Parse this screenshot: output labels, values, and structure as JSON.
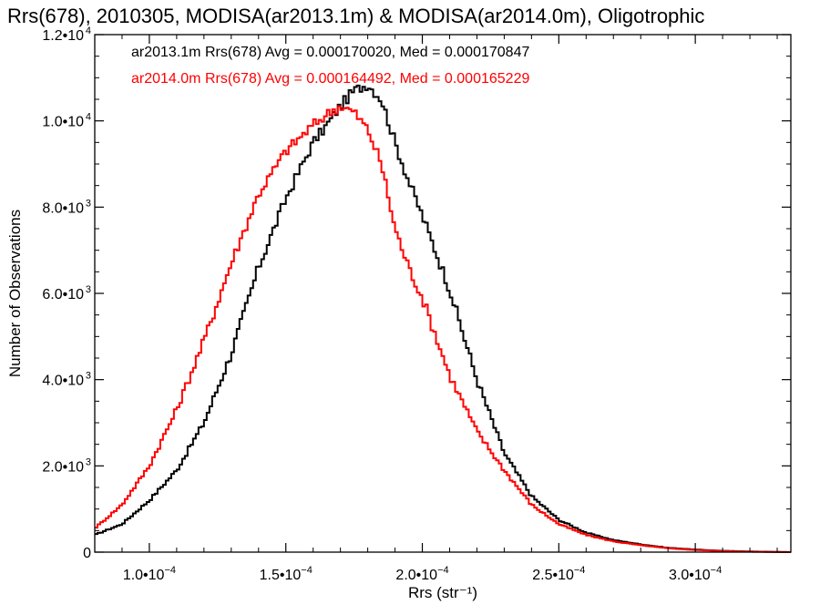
{
  "chart_data": {
    "type": "line",
    "title": "Rrs(678), 2010305, MODISA(ar2013.1m) & MODISA(ar2014.0m), Oligotrophic",
    "xlabel": "Rrs (str⁻¹)",
    "ylabel": "Number of Observations",
    "xlim": [
      8e-05,
      0.000335
    ],
    "ylim": [
      0,
      12000
    ],
    "x_ticks": [
      {
        "value": 0.0001,
        "mant": "1.0•10",
        "exp": "−4"
      },
      {
        "value": 0.00015,
        "mant": "1.5•10",
        "exp": "−4"
      },
      {
        "value": 0.0002,
        "mant": "2.0•10",
        "exp": "−4"
      },
      {
        "value": 0.00025,
        "mant": "2.5•10",
        "exp": "−4"
      },
      {
        "value": 0.0003,
        "mant": "3.0•10",
        "exp": "−4"
      }
    ],
    "y_ticks": [
      {
        "value": 0,
        "mant": "0",
        "exp": ""
      },
      {
        "value": 2000,
        "mant": "2.0•10",
        "exp": "3"
      },
      {
        "value": 4000,
        "mant": "4.0•10",
        "exp": "3"
      },
      {
        "value": 6000,
        "mant": "6.0•10",
        "exp": "3"
      },
      {
        "value": 8000,
        "mant": "8.0•10",
        "exp": "3"
      },
      {
        "value": 10000,
        "mant": "1.0•10",
        "exp": "4"
      },
      {
        "value": 12000,
        "mant": "1.2•10",
        "exp": "4"
      }
    ],
    "legend_placement": "top-left",
    "series": [
      {
        "name": "ar2013.1m",
        "color": "#000000",
        "legend": "ar2013.1m Rrs(678) Avg = 0.000170020, Med = 0.000170847",
        "x": [
          8e-05,
          9e-05,
          0.0001,
          0.00011,
          0.00012,
          0.00013,
          0.00014,
          0.00015,
          0.00016,
          0.000165,
          0.00017,
          0.000175,
          0.00018,
          0.000185,
          0.00019,
          0.000195,
          0.0002,
          0.00021,
          0.00022,
          0.00023,
          0.00024,
          0.00025,
          0.00026,
          0.00027,
          0.00028,
          0.00029,
          0.0003,
          0.00031,
          0.00032,
          0.000335
        ],
        "y": [
          400,
          650,
          1200,
          1900,
          3000,
          4600,
          6600,
          8200,
          9500,
          9900,
          10350,
          10700,
          10850,
          10500,
          9500,
          8600,
          7800,
          6100,
          4000,
          2300,
          1300,
          750,
          450,
          280,
          180,
          100,
          60,
          30,
          15,
          0
        ]
      },
      {
        "name": "ar2014.0m",
        "color": "#ff0000",
        "legend": "ar2014.0m Rrs(678) Avg = 0.000164492, Med = 0.000165229",
        "x": [
          8e-05,
          9e-05,
          0.0001,
          0.00011,
          0.00012,
          0.00013,
          0.00014,
          0.00015,
          0.00016,
          0.000165,
          0.00017,
          0.000175,
          0.00018,
          0.000185,
          0.00019,
          0.000195,
          0.0002,
          0.00021,
          0.00022,
          0.00023,
          0.00024,
          0.00025,
          0.00026,
          0.00027,
          0.00028,
          0.00029,
          0.0003,
          0.00031,
          0.00032,
          0.000335
        ],
        "y": [
          550,
          1100,
          2000,
          3300,
          4900,
          6700,
          8300,
          9300,
          9900,
          10150,
          10350,
          10200,
          9800,
          9000,
          7500,
          6600,
          5900,
          4100,
          2800,
          1900,
          1100,
          650,
          400,
          250,
          160,
          90,
          50,
          25,
          10,
          0
        ]
      }
    ]
  }
}
